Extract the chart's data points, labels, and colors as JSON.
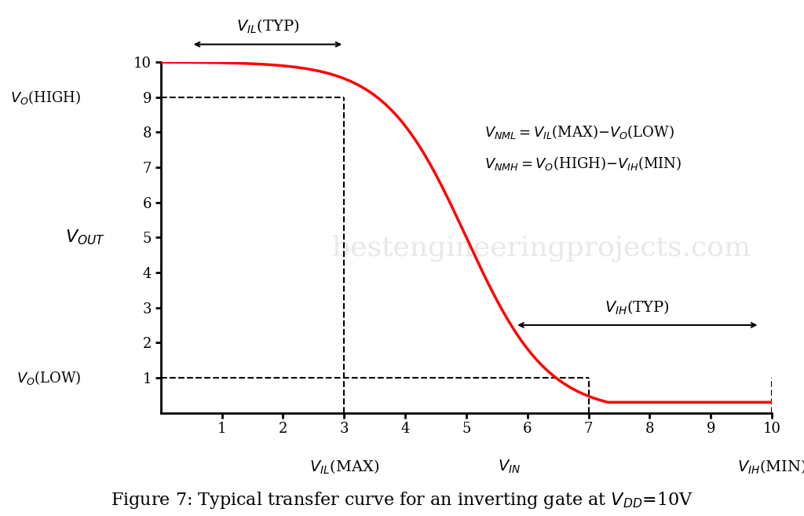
{
  "vdd": 10,
  "vil_max": 3,
  "vih_min": 7,
  "vo_high": 9,
  "vo_low": 1,
  "curve_color": "#ff0000",
  "curve_linewidth": 2.5,
  "bg_color": "#ffffff",
  "xmin": 0,
  "xmax": 10,
  "ymin": 0,
  "ymax": 10,
  "watermark": "bestengineeringprojects.com",
  "sigmoid_midpoint": 5.0,
  "sigmoid_k": 1.5,
  "vout_min_clip": 0.3
}
